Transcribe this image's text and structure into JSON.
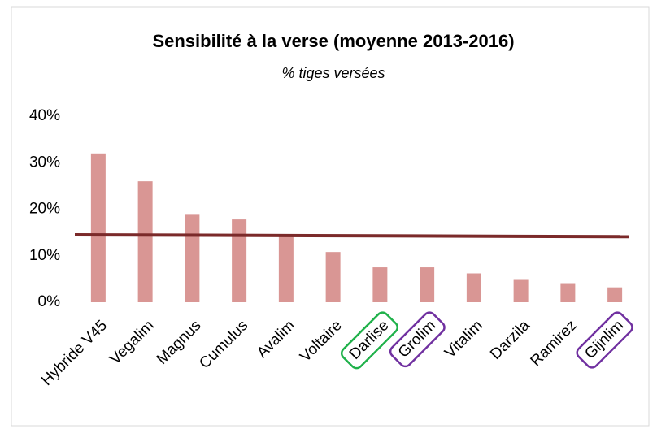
{
  "chart_data": {
    "type": "bar",
    "title": "Sensibilité à la verse (moyenne 2013-2016)",
    "subtitle": "% tiges versées",
    "categories": [
      "Hybride V45",
      "Vegalim",
      "Magnus",
      "Cumulus",
      "Avalim",
      "Voltaire",
      "Darlise",
      "Grolim",
      "Vitalim",
      "Darzila",
      "Ramirez",
      "Gijnlim"
    ],
    "values": [
      32,
      26,
      18.8,
      17.8,
      14.5,
      10.8,
      7.5,
      7.5,
      6.2,
      4.8,
      4.1,
      3.2
    ],
    "color": "#d99694",
    "reference_line": {
      "values": [
        14.5,
        14.1
      ],
      "color": "#7b2a2a"
    },
    "highlights": [
      {
        "index": 6,
        "color": "#1fb14a"
      },
      {
        "index": 7,
        "color": "#7030a0"
      },
      {
        "index": 11,
        "color": "#7030a0"
      }
    ],
    "ylim": [
      0,
      40
    ],
    "yticks": [
      {
        "value": 0,
        "label": "0%"
      },
      {
        "value": 10,
        "label": "10%"
      },
      {
        "value": 20,
        "label": "20%"
      },
      {
        "value": 30,
        "label": "30%"
      },
      {
        "value": 40,
        "label": "40%"
      }
    ],
    "grid": false
  }
}
